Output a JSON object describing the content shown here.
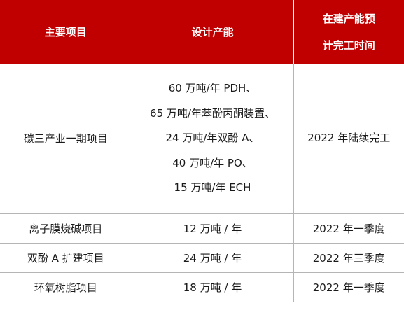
{
  "table": {
    "headers": {
      "project": "主要项目",
      "capacity": "设计产能",
      "completion_line1": "在建产能预",
      "completion_line2": "计完工时间"
    },
    "rows": [
      {
        "project": "碳三产业一期项目",
        "capacity_lines": [
          "60 万吨/年 PDH、",
          "65 万吨/年苯酚丙酮装置、",
          "24 万吨/年双酚 A、",
          "40 万吨/年 PO、",
          "15 万吨/年 ECH"
        ],
        "completion": "2022 年陆续完工"
      },
      {
        "project": "离子膜烧碱项目",
        "capacity": "12 万吨 / 年",
        "completion": "2022 年一季度"
      },
      {
        "project": "双酚 A 扩建项目",
        "capacity": "24 万吨 / 年",
        "completion": "2022 年三季度"
      },
      {
        "project": "环氧树脂项目",
        "capacity": "18 万吨 / 年",
        "completion": "2022 年一季度"
      }
    ]
  },
  "colors": {
    "header_bg": "#c00000",
    "header_text": "#ffffff",
    "grid_line": "#b5b5b5"
  }
}
